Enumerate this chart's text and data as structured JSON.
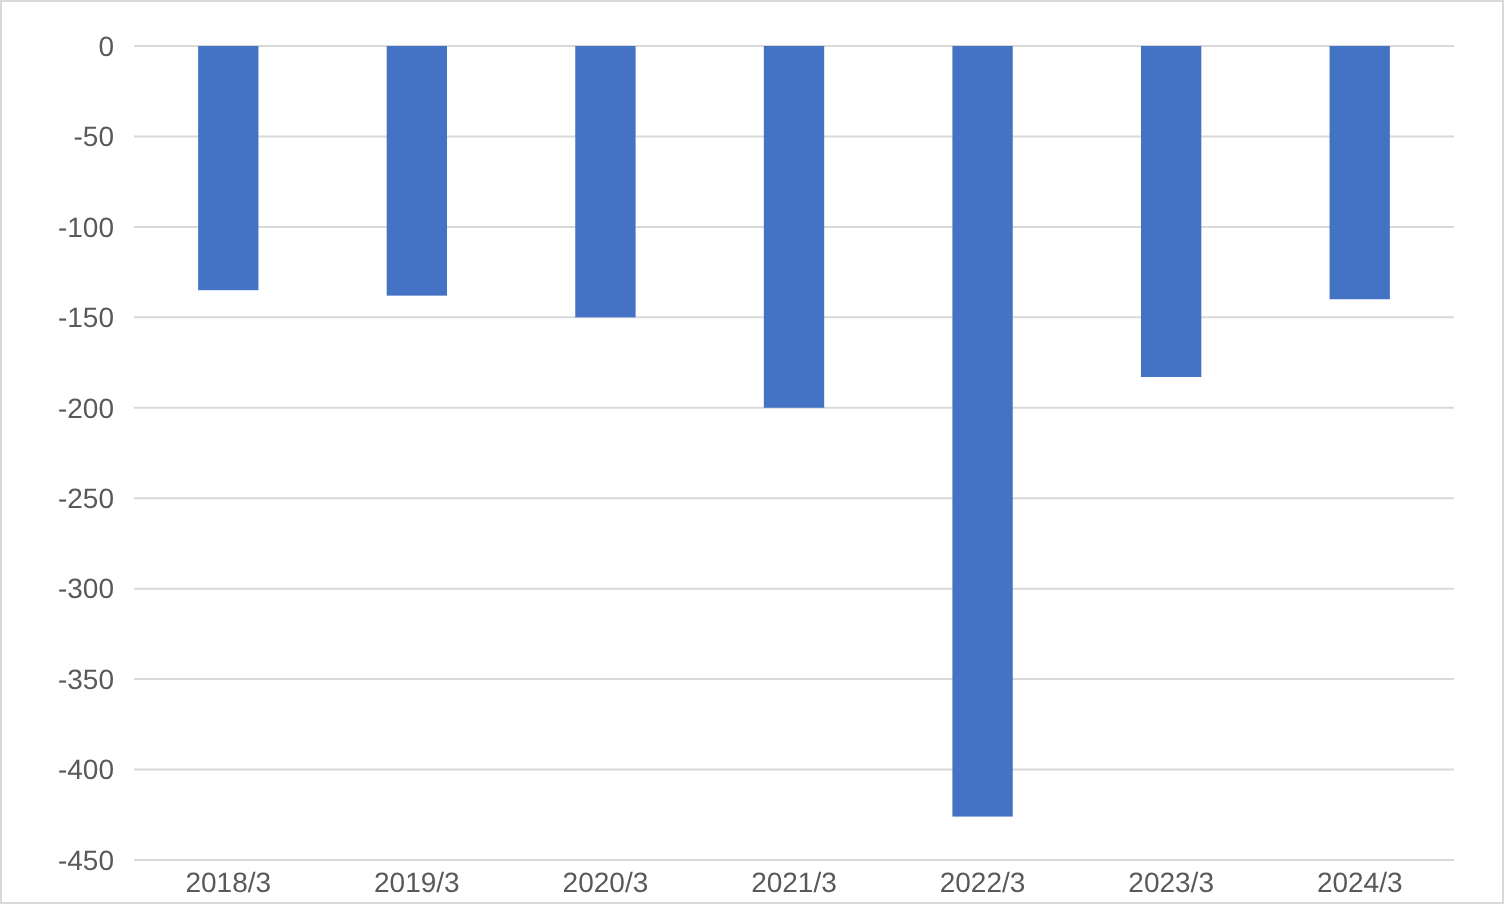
{
  "chart_data": {
    "type": "bar",
    "categories": [
      "2018/3",
      "2019/3",
      "2020/3",
      "2021/3",
      "2022/3",
      "2023/3",
      "2024/3"
    ],
    "values": [
      -135,
      -138,
      -150,
      -200,
      -426,
      -183,
      -140
    ],
    "color": "#4472c4",
    "ylim": [
      -450,
      0
    ],
    "yticks": [
      -450,
      -400,
      -350,
      -300,
      -250,
      -200,
      -150,
      -100,
      -50,
      0
    ],
    "grid": "y"
  }
}
